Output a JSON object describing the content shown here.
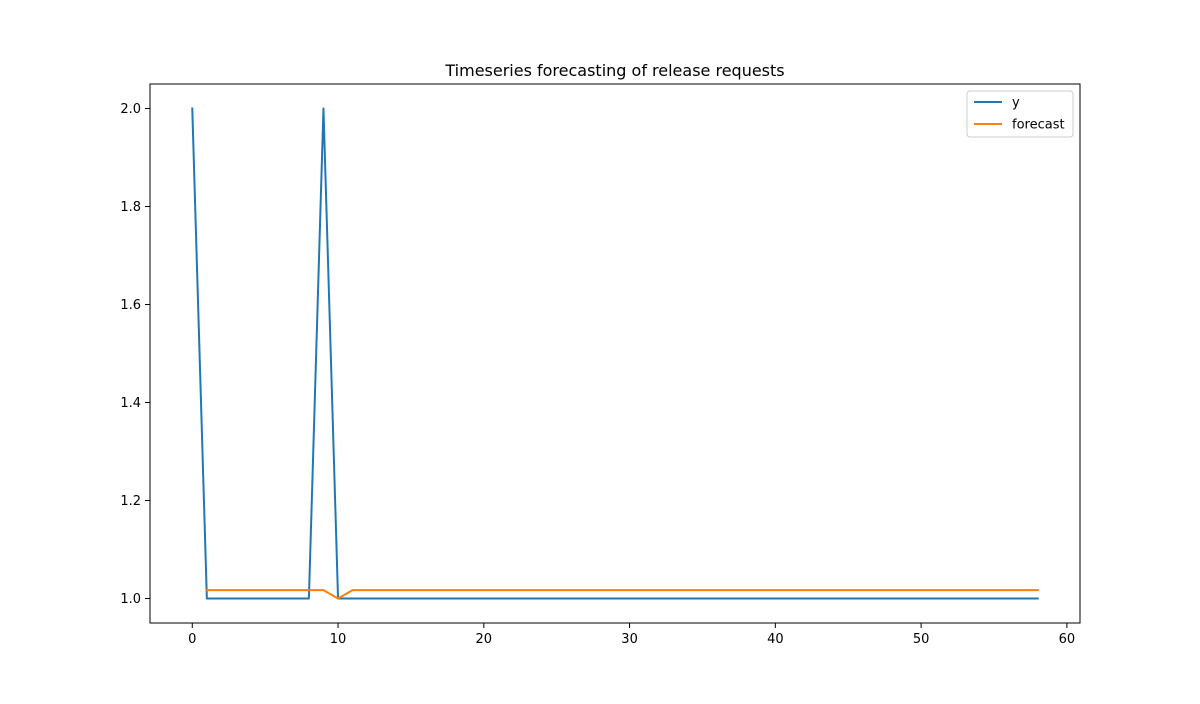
{
  "chart_data": {
    "type": "line",
    "title": "Timeseries forecasting of release requests",
    "xlabel": "",
    "ylabel": "",
    "xlim": [
      -2.9,
      60.9
    ],
    "ylim": [
      0.95,
      2.05
    ],
    "xticks": [
      0,
      10,
      20,
      30,
      40,
      50,
      60
    ],
    "yticks": [
      1.0,
      1.2,
      1.4,
      1.6,
      1.8,
      2.0
    ],
    "xtick_labels": [
      "0",
      "10",
      "20",
      "30",
      "40",
      "50",
      "60"
    ],
    "ytick_labels": [
      "1.0",
      "1.2",
      "1.4",
      "1.6",
      "1.8",
      "2.0"
    ],
    "grid": false,
    "legend_position": "top-right",
    "series": [
      {
        "name": "y",
        "color": "#1f77b4",
        "points": [
          [
            0,
            2.0
          ],
          [
            1,
            1.0
          ],
          [
            8,
            1.0
          ],
          [
            9,
            2.0
          ],
          [
            10,
            1.0
          ],
          [
            58,
            1.0
          ]
        ]
      },
      {
        "name": "forecast",
        "color": "#ff7f0e",
        "points": [
          [
            1,
            1.017
          ],
          [
            9,
            1.017
          ],
          [
            10,
            1.0
          ],
          [
            11,
            1.017
          ],
          [
            58,
            1.017
          ]
        ]
      }
    ]
  }
}
